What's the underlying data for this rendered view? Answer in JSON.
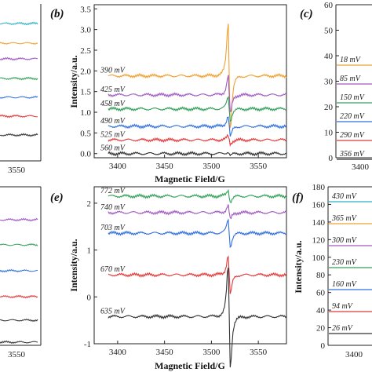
{
  "panels": {
    "a": {
      "tick_labels": [
        "3550"
      ]
    },
    "b": {
      "panel_label": "(b)",
      "chart_data": {
        "type": "line",
        "xlabel": "Magnetic Field/G",
        "ylabel": "Intensity/a.u.",
        "xlim": [
          3375,
          3580
        ],
        "ylim": [
          -0.1,
          3.6
        ],
        "x_ticks": [
          "3400",
          "3450",
          "3500",
          "3550"
        ],
        "y_ticks": [
          "0.0",
          "0.5",
          "1.0",
          "1.5",
          "2.0",
          "2.5",
          "3.0",
          "3.5"
        ],
        "series": [
          {
            "name": "390 mV",
            "color": "#f0a030",
            "baseline": 1.88,
            "amp": 1.55
          },
          {
            "name": "425 mV",
            "color": "#a15ac4",
            "baseline": 1.42,
            "amp": 0.55
          },
          {
            "name": "458 mV",
            "color": "#33a05a",
            "baseline": 1.08,
            "amp": 0.35
          },
          {
            "name": "490 mV",
            "color": "#2f6fe0",
            "baseline": 0.66,
            "amp": 0.3
          },
          {
            "name": "525 mV",
            "color": "#e23a3a",
            "baseline": 0.33,
            "amp": 0.12
          },
          {
            "name": "560 mV",
            "color": "#333333",
            "baseline": 0.0,
            "amp": 0.05
          }
        ]
      }
    },
    "c": {
      "panel_label": "(c)",
      "y_ticks": [
        "0",
        "10",
        "20",
        "30",
        "40",
        "50",
        "60"
      ],
      "x_ticks": [
        "3400"
      ],
      "series": [
        {
          "name": "18 mV",
          "color": "#f0a030"
        },
        {
          "name": "85 mV",
          "color": "#a15ac4"
        },
        {
          "name": "150 mV",
          "color": "#33a05a"
        },
        {
          "name": "220 mV",
          "color": "#2f6fe0"
        },
        {
          "name": "290 mV",
          "color": "#e23a3a"
        },
        {
          "name": "356 mV",
          "color": "#333333"
        }
      ]
    },
    "d": {
      "tick_labels": [
        "3550"
      ]
    },
    "e": {
      "panel_label": "(e)",
      "chart_data": {
        "type": "line",
        "xlabel": "Magnetic Field/G",
        "ylabel": "Intensity/a.u.",
        "xlim": [
          3375,
          3580
        ],
        "ylim": [
          -1.0,
          2.35
        ],
        "x_ticks": [
          "3400",
          "3450",
          "3500",
          "3550"
        ],
        "y_ticks": [
          "-1",
          "0",
          "1",
          "2"
        ],
        "series": [
          {
            "name": "772 mV",
            "color": "#33a05a",
            "baseline": 2.15,
            "amp": 0.15
          },
          {
            "name": "740 mV",
            "color": "#a15ac4",
            "baseline": 1.8,
            "amp": 0.18
          },
          {
            "name": "703 mV",
            "color": "#2f6fe0",
            "baseline": 1.36,
            "amp": 0.35
          },
          {
            "name": "670 mV",
            "color": "#e23a3a",
            "baseline": 0.47,
            "amp": 0.5
          },
          {
            "name": "635 mV",
            "color": "#333333",
            "baseline": -0.42,
            "amp": 1.3
          }
        ]
      }
    },
    "f": {
      "panel_label": "(f)",
      "ylabel": "Intensity/a.u.",
      "y_ticks": [
        "0",
        "20",
        "40",
        "60",
        "80",
        "100",
        "120",
        "140",
        "160",
        "180"
      ],
      "x_ticks": [
        "3400"
      ],
      "series": [
        {
          "name": "430 mV",
          "color": "#2ab0c8"
        },
        {
          "name": "365 mV",
          "color": "#f0a030"
        },
        {
          "name": "300 mV",
          "color": "#a15ac4"
        },
        {
          "name": "230 mV",
          "color": "#33a05a"
        },
        {
          "name": "160 mV",
          "color": "#2f6fe0"
        },
        {
          "name": "94 mV",
          "color": "#e23a3a"
        },
        {
          "name": "26 mV",
          "color": "#333333"
        }
      ]
    }
  }
}
